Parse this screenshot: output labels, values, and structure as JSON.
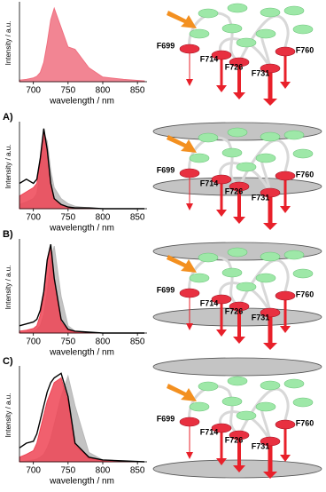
{
  "chart_data": [
    {
      "type": "line",
      "xlabel": "wavelength / nm",
      "ylabel": "Intensity / a.u.",
      "x": [
        680,
        690,
        700,
        705,
        710,
        715,
        720,
        725,
        730,
        740,
        750,
        760,
        780,
        800,
        830,
        860
      ],
      "xlim": [
        680,
        860
      ],
      "xticks": [
        700,
        750,
        800,
        850
      ],
      "ylim": [
        0,
        1
      ],
      "series": [
        {
          "color": "#f07080",
          "fill": true,
          "values": [
            0.02,
            0.03,
            0.05,
            0.07,
            0.12,
            0.25,
            0.5,
            0.8,
            0.95,
            0.7,
            0.45,
            0.42,
            0.18,
            0.06,
            0.03,
            0.01
          ]
        }
      ],
      "annotations": [
        "F699",
        "F714",
        "F726",
        "F731",
        "F760"
      ]
    },
    {
      "type": "line",
      "panel_label": "A)",
      "xlabel": "wavelength / nm",
      "ylabel": "Intensity / a.u.",
      "x": [
        680,
        690,
        700,
        705,
        710,
        715,
        720,
        725,
        730,
        740,
        750,
        760,
        780,
        800,
        830,
        860
      ],
      "xlim": [
        680,
        860
      ],
      "xticks": [
        700,
        750,
        800,
        850
      ],
      "ylim": [
        0,
        1
      ],
      "series": [
        {
          "color": "#b8b8b8",
          "fill": true,
          "values": [
            0.05,
            0.08,
            0.12,
            0.18,
            0.45,
            0.9,
            0.8,
            0.45,
            0.25,
            0.12,
            0.06,
            0.03,
            0.01,
            0,
            0,
            0
          ]
        },
        {
          "color": "#ee4455",
          "fill": true,
          "values": [
            0.15,
            0.2,
            0.25,
            0.3,
            0.55,
            0.93,
            0.7,
            0.3,
            0.12,
            0.05,
            0.02,
            0.01,
            0,
            0,
            0,
            0
          ]
        },
        {
          "color": "#000000",
          "fill": false,
          "values": [
            0.3,
            0.35,
            0.3,
            0.35,
            0.6,
            0.95,
            0.7,
            0.3,
            0.12,
            0.05,
            0.02,
            0.01,
            0.01,
            0,
            0,
            0
          ]
        }
      ],
      "annotations": [
        "F699",
        "F714",
        "F726",
        "F731",
        "F760"
      ]
    },
    {
      "type": "line",
      "panel_label": "B)",
      "xlabel": "wavelength / nm",
      "ylabel": "Intensity / a.u.",
      "x": [
        680,
        690,
        700,
        705,
        710,
        715,
        720,
        725,
        730,
        740,
        750,
        760,
        780,
        800,
        830,
        860
      ],
      "xlim": [
        680,
        860
      ],
      "xticks": [
        700,
        750,
        800,
        850
      ],
      "ylim": [
        0,
        1
      ],
      "series": [
        {
          "color": "#b8b8b8",
          "fill": true,
          "values": [
            0,
            0.01,
            0.02,
            0.04,
            0.08,
            0.2,
            0.45,
            0.8,
            0.95,
            0.4,
            0.08,
            0.02,
            0,
            0,
            0,
            0
          ]
        },
        {
          "color": "#ee4455",
          "fill": true,
          "values": [
            0.02,
            0.03,
            0.05,
            0.08,
            0.2,
            0.42,
            0.78,
            0.95,
            0.58,
            0.12,
            0.03,
            0.01,
            0,
            0,
            0,
            0
          ]
        },
        {
          "color": "#000000",
          "fill": false,
          "values": [
            0.08,
            0.1,
            0.12,
            0.15,
            0.25,
            0.45,
            0.8,
            0.97,
            0.6,
            0.15,
            0.04,
            0.02,
            0.01,
            0,
            0,
            0
          ]
        }
      ],
      "annotations": [
        "F699",
        "F714",
        "F726",
        "F731",
        "F760"
      ]
    },
    {
      "type": "line",
      "panel_label": "C)",
      "xlabel": "wavelength / nm",
      "ylabel": "Intensity / a.u.",
      "x": [
        680,
        690,
        700,
        705,
        710,
        715,
        720,
        725,
        730,
        740,
        750,
        760,
        780,
        800,
        830,
        860
      ],
      "xlim": [
        680,
        860
      ],
      "xticks": [
        700,
        750,
        800,
        850
      ],
      "ylim": [
        0,
        1
      ],
      "series": [
        {
          "color": "#b8b8b8",
          "fill": true,
          "values": [
            0,
            0.01,
            0.02,
            0.03,
            0.05,
            0.08,
            0.15,
            0.25,
            0.4,
            0.7,
            0.92,
            0.6,
            0.1,
            0.02,
            0,
            0
          ]
        },
        {
          "color": "#ee4455",
          "fill": true,
          "values": [
            0.05,
            0.08,
            0.12,
            0.2,
            0.35,
            0.5,
            0.65,
            0.75,
            0.85,
            0.9,
            0.65,
            0.18,
            0.04,
            0.01,
            0,
            0
          ]
        },
        {
          "color": "#000000",
          "fill": false,
          "values": [
            0.15,
            0.2,
            0.22,
            0.3,
            0.45,
            0.6,
            0.75,
            0.85,
            0.9,
            0.95,
            0.7,
            0.2,
            0.05,
            0.02,
            0.01,
            0
          ]
        }
      ],
      "annotations": [
        "F699",
        "F714",
        "F726",
        "F731",
        "F760"
      ]
    }
  ]
}
